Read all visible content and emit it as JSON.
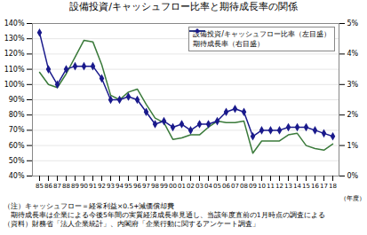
{
  "chart_data": {
    "type": "line",
    "title": "設備投資/キャッシュフロー比率と期待成長率の関係",
    "xlabel": "（年度）",
    "annotations": [
      "（注）キャッシュフロー＝経常利益×0.5+減価償却費",
      "　期待成長率は企業による今後5年間の実質経済成長率見通し、当該年度直前の1月時点の調査による",
      "（資料）財務省「法人企業統計」、内閣府「企業行動に関するアンケート調査」"
    ],
    "categories": [
      "85",
      "86",
      "87",
      "88",
      "89",
      "90",
      "91",
      "92",
      "93",
      "94",
      "95",
      "96",
      "97",
      "98",
      "99",
      "00",
      "01",
      "02",
      "03",
      "04",
      "05",
      "06",
      "07",
      "08",
      "09",
      "10",
      "11",
      "12",
      "13",
      "14",
      "15",
      "16",
      "17",
      "18"
    ],
    "series": [
      {
        "name": "設備投資/キャッシュフロー比率（左目盛）",
        "color": "#3a7a3a",
        "values": [
          108,
          100,
          98,
          107,
          118,
          129,
          128,
          113,
          93,
          90,
          95,
          97,
          87,
          78,
          75,
          64,
          65,
          67,
          67,
          72,
          76,
          75,
          75,
          76,
          55,
          63,
          63,
          63,
          67,
          68,
          60,
          58,
          57,
          61
        ]
      },
      {
        "name": "期待成長率（右目盛）",
        "color": "#1a1a8c",
        "axis": "y2",
        "marker": "diamond",
        "values": [
          4.7,
          3.5,
          3.0,
          3.5,
          3.6,
          3.6,
          3.6,
          3.2,
          2.5,
          2.5,
          2.6,
          2.5,
          2.1,
          1.7,
          1.8,
          1.6,
          1.7,
          1.5,
          1.7,
          1.7,
          1.8,
          2.1,
          2.2,
          2.1,
          1.3,
          1.5,
          1.5,
          1.5,
          1.6,
          1.6,
          1.6,
          1.5,
          1.4,
          1.3
        ]
      }
    ],
    "ylim": [
      40,
      140
    ],
    "yticks": [
      {
        "value": 40,
        "label": "40%"
      },
      {
        "value": 50,
        "label": "50%"
      },
      {
        "value": 60,
        "label": "60%"
      },
      {
        "value": 70,
        "label": "70%"
      },
      {
        "value": 80,
        "label": "80%"
      },
      {
        "value": 90,
        "label": "90%"
      },
      {
        "value": 100,
        "label": "100%"
      },
      {
        "value": 110,
        "label": "110%"
      },
      {
        "value": 120,
        "label": "120%"
      },
      {
        "value": 130,
        "label": "130%"
      },
      {
        "value": 140,
        "label": "140%"
      }
    ],
    "y2lim": [
      0,
      5
    ],
    "y2ticks": [
      {
        "value": 0,
        "label": "0%"
      },
      {
        "value": 1,
        "label": "1%"
      },
      {
        "value": 2,
        "label": "2%"
      },
      {
        "value": 3,
        "label": "3%"
      },
      {
        "value": 4,
        "label": "4%"
      },
      {
        "value": 5,
        "label": "5%"
      }
    ],
    "grid": true,
    "legend": "upper right"
  }
}
